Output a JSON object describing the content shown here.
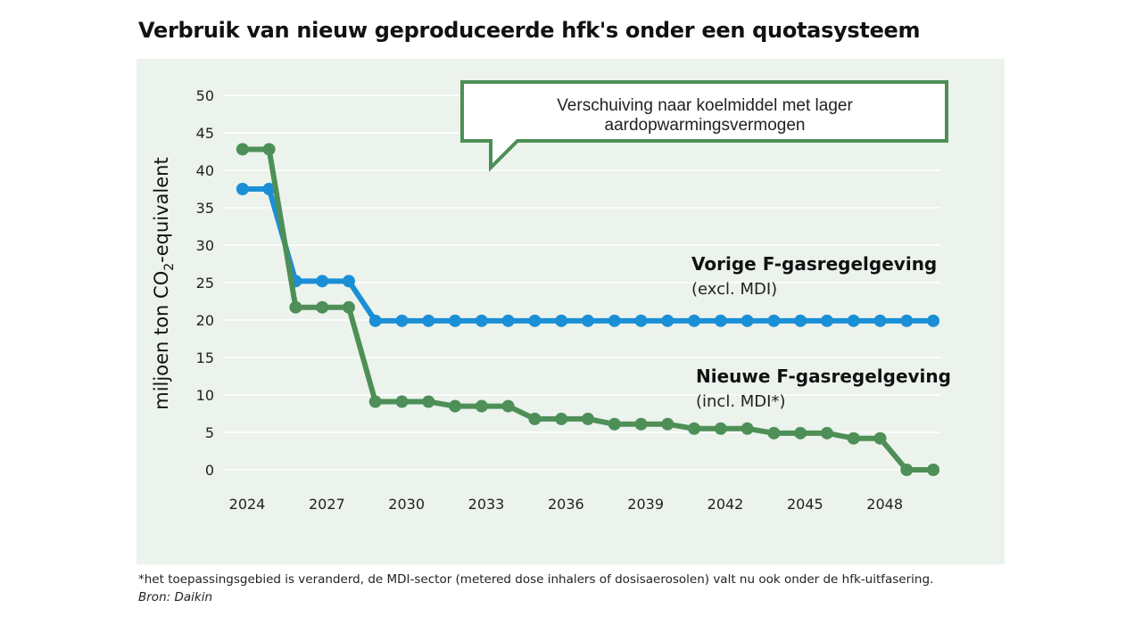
{
  "title": "Verbruik van nieuw geproduceerde hfk's onder een quotasysteem",
  "callout": "Verschuiving naar koelmiddel met lager aardopwarmingsvermogen",
  "footnote": "*het toepassingsgebied is veranderd, de MDI-sector (metered dose inhalers of dosisaerosolen) valt nu ook onder de hfk-uitfasering.",
  "source": "Bron: Daikin",
  "colors": {
    "panel": "#ebf3ec",
    "blue": "#1b8fd6",
    "green": "#4e8f57",
    "callout_border": "#4e8f57"
  },
  "chart_data": {
    "type": "line",
    "ylabel_main": "miljoen ton CO",
    "ylabel_sub": "2",
    "ylabel_tail": "-equivalent",
    "ylim": [
      0,
      50
    ],
    "yticks": [
      0,
      5,
      10,
      15,
      20,
      25,
      30,
      35,
      40,
      45,
      50
    ],
    "xticks": [
      2024,
      2027,
      2030,
      2033,
      2036,
      2039,
      2042,
      2045,
      2048
    ],
    "xlim": [
      2024,
      2051
    ],
    "grid": true,
    "x": [
      2024.7,
      2025.7,
      2026.7,
      2027.7,
      2028.7,
      2029.7,
      2030.7,
      2031.7,
      2032.7,
      2033.7,
      2034.7,
      2035.7,
      2036.7,
      2037.7,
      2038.7,
      2039.7,
      2040.7,
      2041.7,
      2042.7,
      2043.7,
      2044.7,
      2045.7,
      2046.7,
      2047.7,
      2048.7,
      2049.7,
      2050.7
    ],
    "series": [
      {
        "label_main": "Vorige F-gasregelgeving",
        "label_sub": "(excl. MDI)",
        "color": "#1b8fd6",
        "values": [
          37.5,
          37.5,
          25.2,
          25.2,
          25.2,
          19.9,
          19.9,
          19.9,
          19.9,
          19.9,
          19.9,
          19.9,
          19.9,
          19.9,
          19.9,
          19.9,
          19.9,
          19.9,
          19.9,
          19.9,
          19.9,
          19.9,
          19.9,
          19.9,
          19.9,
          19.9,
          19.9
        ]
      },
      {
        "label_main": "Nieuwe F-gasregelgeving",
        "label_sub": "(incl. MDI*)",
        "color": "#4e8f57",
        "values": [
          42.8,
          42.8,
          21.7,
          21.7,
          21.7,
          9.1,
          9.1,
          9.1,
          8.5,
          8.5,
          8.5,
          6.8,
          6.8,
          6.8,
          6.1,
          6.1,
          6.1,
          5.5,
          5.5,
          5.5,
          4.9,
          4.9,
          4.9,
          4.2,
          4.2,
          0.0,
          0.0
        ]
      }
    ]
  }
}
